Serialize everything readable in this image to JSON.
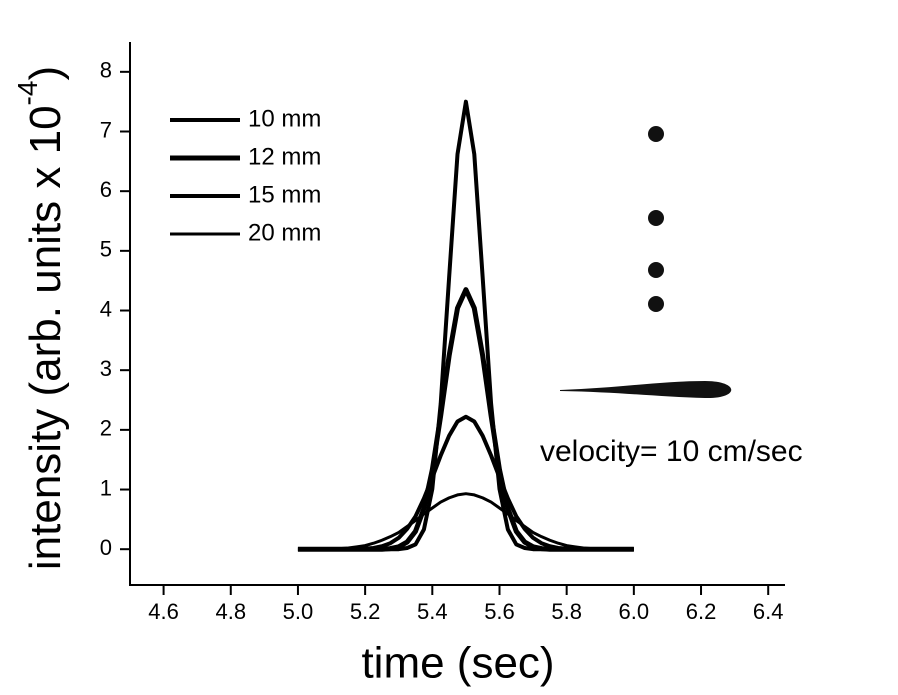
{
  "chart_data": {
    "type": "line",
    "xlabel": "time (sec)",
    "ylabel": {
      "text": "intensity (arb. units x 10",
      "superscript": "-4",
      "suffix": ")"
    },
    "annotation": "velocity= 10 cm/sec",
    "legend": "upper left",
    "x": [
      5,
      5.025,
      5.05,
      5.075,
      5.1,
      5.125,
      5.15,
      5.175,
      5.2,
      5.225,
      5.25,
      5.275,
      5.3,
      5.325,
      5.35,
      5.375,
      5.4,
      5.425,
      5.45,
      5.475,
      5.5,
      5.525,
      5.55,
      5.575,
      5.6,
      5.625,
      5.65,
      5.675,
      5.7,
      5.725,
      5.75,
      5.775,
      5.8,
      5.825,
      5.85,
      5.875,
      5.9,
      5.925,
      5.95,
      5.975,
      6
    ],
    "series": [
      {
        "name": "10 mm",
        "color": "#000000",
        "values": [
          0,
          0,
          0,
          0,
          0,
          0,
          0,
          0,
          0,
          0,
          0,
          0,
          0,
          0.02,
          0.08,
          0.33,
          1.01,
          2.44,
          4.55,
          6.62,
          7.5,
          6.62,
          4.55,
          2.44,
          1.01,
          0.33,
          0.08,
          0.02,
          0,
          0,
          0,
          0,
          0,
          0,
          0,
          0,
          0,
          0,
          0,
          0,
          0
        ]
      },
      {
        "name": "12 mm",
        "color": "#000000",
        "values": [
          0,
          0,
          0,
          0,
          0,
          0,
          0,
          0,
          0,
          0,
          0,
          0.01,
          0.04,
          0.12,
          0.3,
          0.68,
          1.33,
          2.24,
          3.24,
          4.04,
          4.35,
          4.04,
          3.24,
          2.24,
          1.33,
          0.68,
          0.3,
          0.12,
          0.04,
          0.01,
          0,
          0,
          0,
          0,
          0,
          0,
          0,
          0,
          0,
          0,
          0
        ]
      },
      {
        "name": "15 mm",
        "color": "#000000",
        "values": [
          0,
          0,
          0,
          0,
          0,
          0,
          0,
          0,
          0.01,
          0.02,
          0.05,
          0.1,
          0.19,
          0.34,
          0.55,
          0.85,
          1.2,
          1.57,
          1.9,
          2.14,
          2.22,
          2.14,
          1.9,
          1.57,
          1.2,
          0.85,
          0.55,
          0.34,
          0.19,
          0.1,
          0.05,
          0.02,
          0.01,
          0,
          0,
          0,
          0,
          0,
          0,
          0,
          0
        ]
      },
      {
        "name": "20 mm",
        "color": "#000000",
        "values": [
          0,
          0,
          0,
          0,
          0.01,
          0.01,
          0.02,
          0.04,
          0.06,
          0.1,
          0.15,
          0.21,
          0.28,
          0.38,
          0.48,
          0.59,
          0.69,
          0.79,
          0.86,
          0.91,
          0.93,
          0.91,
          0.86,
          0.79,
          0.69,
          0.59,
          0.48,
          0.38,
          0.28,
          0.21,
          0.15,
          0.1,
          0.06,
          0.04,
          0.02,
          0.01,
          0.01,
          0,
          0,
          0,
          0
        ]
      }
    ],
    "xlim": [
      4.5,
      6.45
    ],
    "ylim": [
      -0.6,
      8.5
    ],
    "xticks": [
      4.6,
      4.8,
      {
        "value": 5,
        "label": "5.0"
      },
      5.2,
      5.4,
      5.6,
      5.8,
      {
        "value": 6,
        "label": "6.0"
      },
      6.2,
      6.4
    ],
    "yticks": [
      0,
      1,
      2,
      3,
      4,
      5,
      6,
      7,
      8
    ]
  }
}
